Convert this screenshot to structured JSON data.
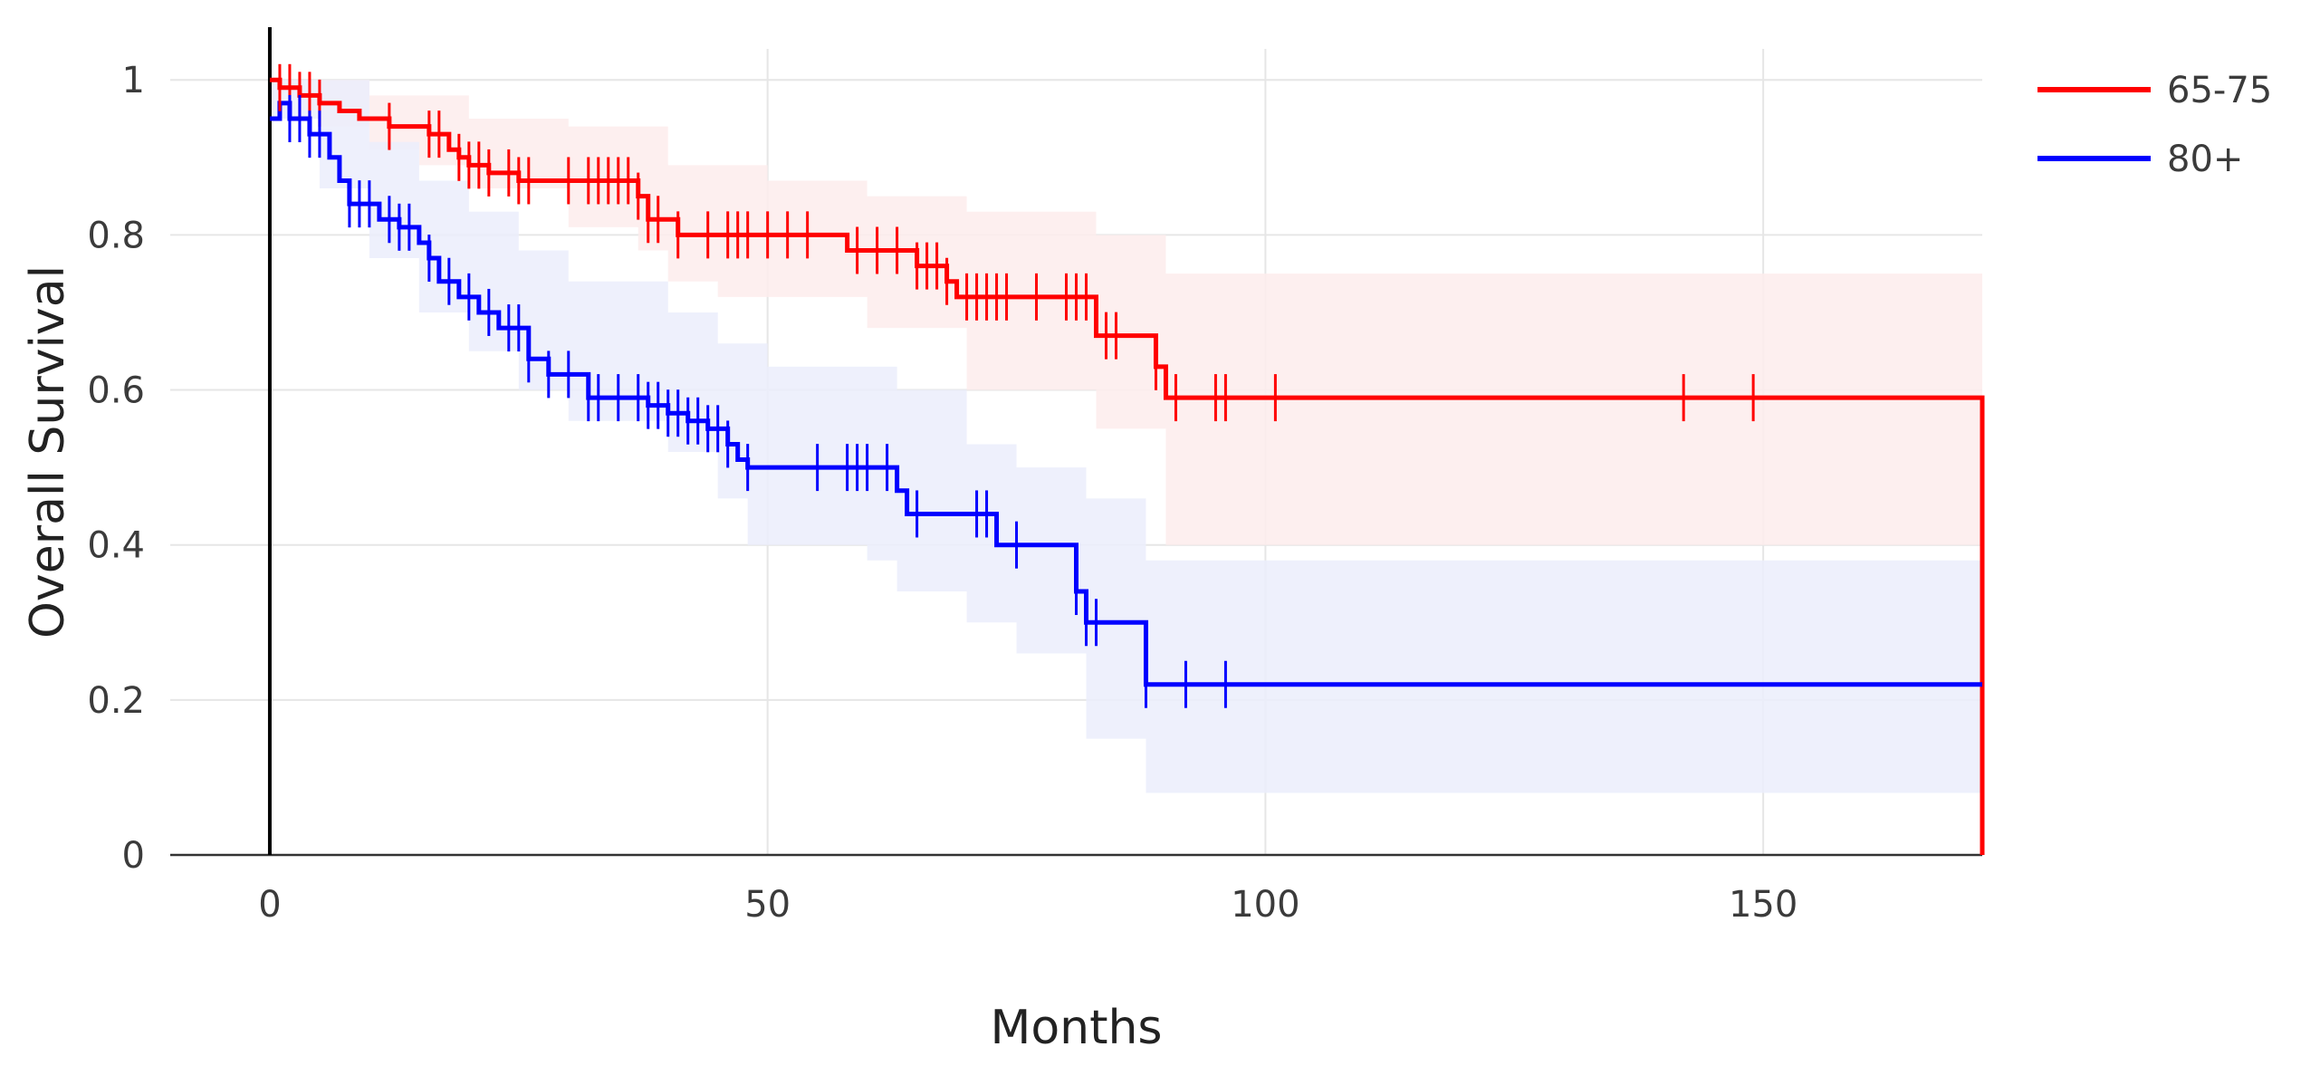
{
  "chart_data": {
    "type": "line",
    "subtype": "kaplan-meier",
    "title": "",
    "xlabel": "Months",
    "ylabel": "Overall Survival",
    "xlim": [
      -10,
      172
    ],
    "ylim": [
      0,
      1.04
    ],
    "x_ticks": [
      0,
      50,
      100,
      150
    ],
    "y_ticks": [
      0,
      0.2,
      0.4,
      0.6,
      0.8,
      1
    ],
    "x_tick_labels": [
      "0",
      "50",
      "100",
      "150"
    ],
    "y_tick_labels": [
      "0",
      "0.2",
      "0.4",
      "0.6",
      "0.8",
      "1"
    ],
    "grid": true,
    "legend_position": "top-right",
    "series": [
      {
        "name": "65-75",
        "color": "#ff0000",
        "band_color": "#fdecec",
        "steps": [
          [
            0,
            1.0
          ],
          [
            1,
            0.99
          ],
          [
            3,
            0.98
          ],
          [
            5,
            0.97
          ],
          [
            7,
            0.96
          ],
          [
            9,
            0.95
          ],
          [
            12,
            0.94
          ],
          [
            16,
            0.93
          ],
          [
            18,
            0.91
          ],
          [
            19,
            0.9
          ],
          [
            20,
            0.89
          ],
          [
            22,
            0.88
          ],
          [
            25,
            0.87
          ],
          [
            37,
            0.85
          ],
          [
            38,
            0.82
          ],
          [
            41,
            0.8
          ],
          [
            58,
            0.78
          ],
          [
            65,
            0.76
          ],
          [
            68,
            0.74
          ],
          [
            69,
            0.72
          ],
          [
            83,
            0.67
          ],
          [
            89,
            0.63
          ],
          [
            90,
            0.59
          ],
          [
            172,
            0.0
          ]
        ],
        "ci_lower": [
          [
            0,
            1.0
          ],
          [
            5,
            0.94
          ],
          [
            10,
            0.91
          ],
          [
            15,
            0.89
          ],
          [
            20,
            0.86
          ],
          [
            30,
            0.81
          ],
          [
            37,
            0.78
          ],
          [
            40,
            0.74
          ],
          [
            45,
            0.72
          ],
          [
            60,
            0.68
          ],
          [
            70,
            0.6
          ],
          [
            83,
            0.55
          ],
          [
            90,
            0.4
          ],
          [
            172,
            0.4
          ]
        ],
        "ci_upper": [
          [
            0,
            1.0
          ],
          [
            10,
            0.98
          ],
          [
            20,
            0.95
          ],
          [
            30,
            0.94
          ],
          [
            40,
            0.89
          ],
          [
            50,
            0.87
          ],
          [
            60,
            0.85
          ],
          [
            70,
            0.83
          ],
          [
            83,
            0.8
          ],
          [
            90,
            0.75
          ],
          [
            172,
            0.75
          ]
        ],
        "censored": [
          1,
          2,
          3,
          4,
          5,
          12,
          16,
          17,
          19,
          20,
          21,
          22,
          24,
          25,
          26,
          30,
          32,
          33,
          34,
          35,
          36,
          37,
          38,
          39,
          41,
          44,
          46,
          47,
          48,
          50,
          52,
          54,
          59,
          61,
          63,
          65,
          66,
          67,
          68,
          70,
          71,
          72,
          73,
          74,
          77,
          80,
          81,
          82,
          84,
          85,
          89,
          91,
          95,
          96,
          101,
          142,
          149
        ]
      },
      {
        "name": "80+",
        "color": "#0000ff",
        "band_color": "#ebedfc",
        "steps": [
          [
            0,
            0.95
          ],
          [
            1,
            0.97
          ],
          [
            2,
            0.95
          ],
          [
            4,
            0.93
          ],
          [
            6,
            0.9
          ],
          [
            7,
            0.87
          ],
          [
            8,
            0.84
          ],
          [
            11,
            0.82
          ],
          [
            13,
            0.81
          ],
          [
            15,
            0.79
          ],
          [
            16,
            0.77
          ],
          [
            17,
            0.74
          ],
          [
            19,
            0.72
          ],
          [
            21,
            0.7
          ],
          [
            23,
            0.68
          ],
          [
            26,
            0.64
          ],
          [
            28,
            0.62
          ],
          [
            32,
            0.59
          ],
          [
            38,
            0.58
          ],
          [
            40,
            0.57
          ],
          [
            42,
            0.56
          ],
          [
            44,
            0.55
          ],
          [
            46,
            0.53
          ],
          [
            47,
            0.51
          ],
          [
            48,
            0.5
          ],
          [
            63,
            0.47
          ],
          [
            64,
            0.44
          ],
          [
            73,
            0.4
          ],
          [
            81,
            0.34
          ],
          [
            82,
            0.3
          ],
          [
            88,
            0.22
          ],
          [
            172,
            0.22
          ]
        ],
        "ci_lower": [
          [
            0,
            0.95
          ],
          [
            5,
            0.86
          ],
          [
            10,
            0.77
          ],
          [
            15,
            0.7
          ],
          [
            20,
            0.65
          ],
          [
            25,
            0.6
          ],
          [
            30,
            0.56
          ],
          [
            40,
            0.52
          ],
          [
            45,
            0.46
          ],
          [
            48,
            0.4
          ],
          [
            60,
            0.38
          ],
          [
            63,
            0.34
          ],
          [
            70,
            0.3
          ],
          [
            75,
            0.26
          ],
          [
            82,
            0.15
          ],
          [
            88,
            0.08
          ],
          [
            172,
            0.08
          ]
        ],
        "ci_upper": [
          [
            0,
            1.0
          ],
          [
            10,
            0.92
          ],
          [
            15,
            0.87
          ],
          [
            20,
            0.83
          ],
          [
            25,
            0.78
          ],
          [
            30,
            0.74
          ],
          [
            40,
            0.7
          ],
          [
            45,
            0.66
          ],
          [
            50,
            0.63
          ],
          [
            63,
            0.6
          ],
          [
            70,
            0.53
          ],
          [
            75,
            0.5
          ],
          [
            82,
            0.46
          ],
          [
            88,
            0.38
          ],
          [
            172,
            0.38
          ]
        ],
        "censored": [
          2,
          3,
          4,
          5,
          8,
          9,
          10,
          12,
          13,
          14,
          16,
          18,
          20,
          22,
          24,
          25,
          26,
          28,
          30,
          32,
          33,
          35,
          37,
          38,
          39,
          40,
          41,
          42,
          43,
          44,
          45,
          46,
          48,
          55,
          58,
          59,
          60,
          62,
          65,
          71,
          72,
          75,
          81,
          82,
          83,
          88,
          92,
          96
        ]
      }
    ]
  }
}
